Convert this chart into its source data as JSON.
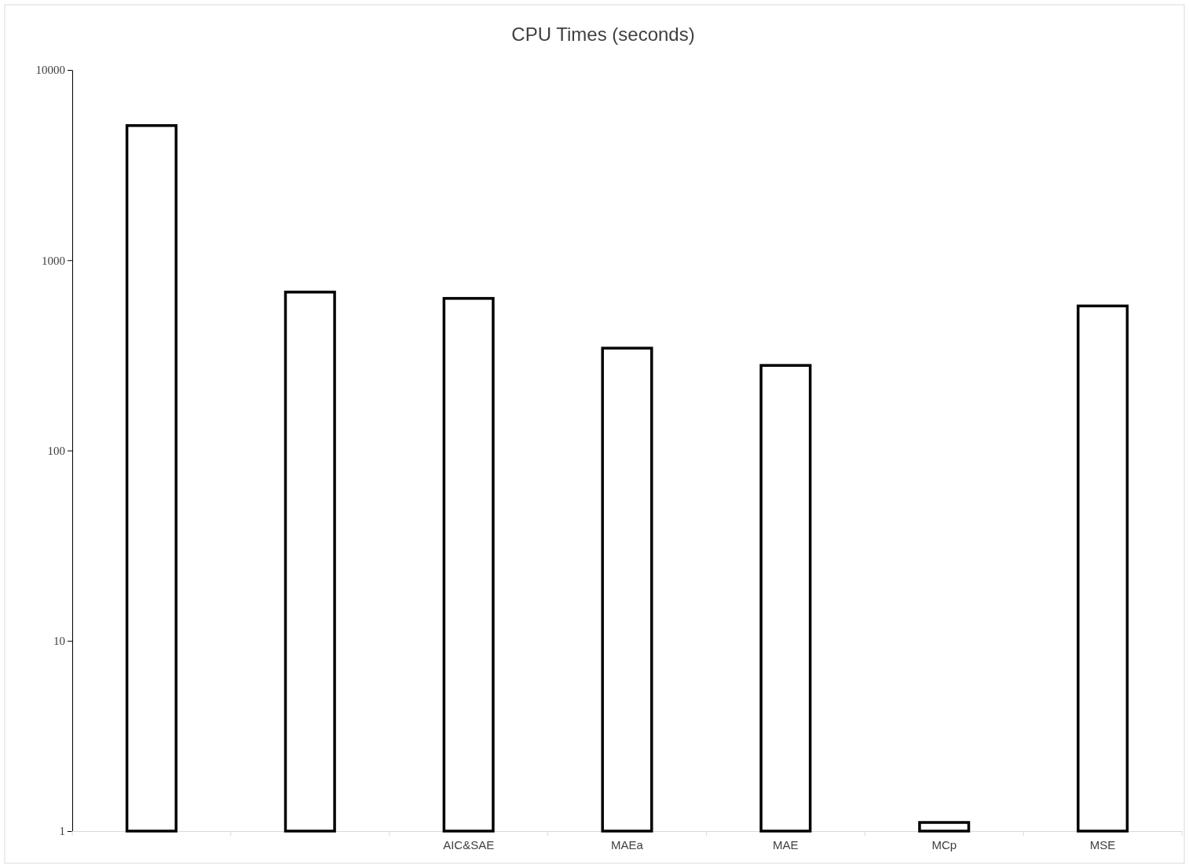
{
  "chart_data": {
    "type": "bar",
    "title": "CPU Times (seconds)",
    "categories": [
      null,
      null,
      "AIC&SAE",
      "MAEa",
      "MAE",
      "MCp",
      "MSE"
    ],
    "values": [
      5100,
      680,
      630,
      345,
      280,
      1.11,
      575
    ],
    "color": "#ffffff",
    "log": true,
    "ylim": [
      1,
      10000
    ],
    "yticks": [
      1,
      10,
      100,
      1000,
      10000
    ],
    "grid": false
  }
}
